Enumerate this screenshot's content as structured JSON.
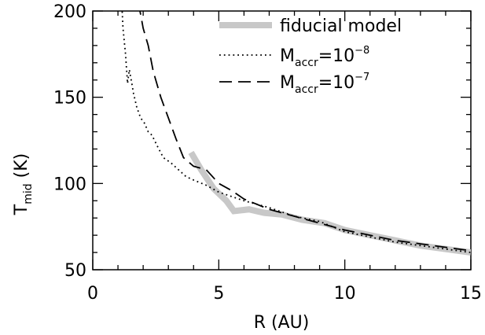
{
  "chart_data": {
    "type": "line",
    "title": "",
    "xlabel": "R (AU)",
    "ylabel": {
      "main": "T",
      "sub": "mid",
      "unit": " (K)"
    },
    "xlim": [
      0,
      15
    ],
    "ylim": [
      50,
      200
    ],
    "x_ticks": [
      0,
      5,
      10,
      15
    ],
    "x_tick_labels": [
      "0",
      "5",
      "10",
      "15"
    ],
    "y_ticks": [
      50,
      100,
      150,
      200
    ],
    "y_tick_labels": [
      "50",
      "100",
      "150",
      "200"
    ],
    "grid": false,
    "legend_position": "top-right",
    "series": [
      {
        "name": "fiducial model",
        "legend": {
          "text": "fiducial model"
        },
        "style": "solid-thick",
        "color": "#c8c8c8",
        "x": [
          3.9,
          4.3,
          4.8,
          5.3,
          5.6,
          6.2,
          6.8,
          7.5,
          8.3,
          9.2,
          10,
          11,
          12,
          13,
          14,
          15
        ],
        "y": [
          118,
          108,
          97,
          90,
          84,
          85,
          83,
          82,
          79,
          77,
          73,
          70,
          67,
          64,
          62,
          60
        ]
      },
      {
        "name": "Maccr=10^-8",
        "legend": {
          "main": "M",
          "sub": "accr",
          "mid": "=10",
          "sup": "−8"
        },
        "style": "dotted",
        "color": "#000000",
        "x": [
          1.15,
          1.2,
          1.3,
          1.38,
          1.45,
          1.55,
          1.62,
          1.75,
          1.9,
          2.05,
          2.2,
          2.35,
          2.55,
          2.8,
          3.1,
          3.4,
          3.7,
          4.0,
          4.5,
          5.0,
          6.0,
          7.0,
          8.0,
          9.0,
          10.0,
          11.0,
          12.0,
          13.0,
          14.0,
          15.0
        ],
        "y": [
          205,
          190,
          175,
          158,
          166,
          158,
          152,
          144,
          138,
          135,
          130,
          128,
          122,
          115,
          112,
          108,
          104,
          102,
          99,
          95,
          90,
          86,
          81,
          78,
          72,
          69,
          66,
          64,
          62,
          60
        ]
      },
      {
        "name": "Maccr=10^-7",
        "legend": {
          "main": "M",
          "sub": "accr",
          "mid": "=10",
          "sup": "−7"
        },
        "style": "dashed",
        "color": "#000000",
        "x": [
          1.8,
          1.9,
          2.0,
          2.2,
          2.4,
          2.7,
          3.0,
          3.3,
          3.6,
          4.0,
          4.5,
          5.0,
          5.5,
          6.0,
          7.0,
          8.0,
          9.0,
          10.0,
          11.0,
          12.0,
          13.0,
          14.0,
          15.0
        ],
        "y": [
          205,
          198,
          190,
          180,
          165,
          150,
          138,
          126,
          115,
          110,
          108,
          100,
          96,
          91,
          85,
          81,
          77,
          73,
          70,
          67,
          65,
          63,
          61
        ]
      }
    ]
  }
}
